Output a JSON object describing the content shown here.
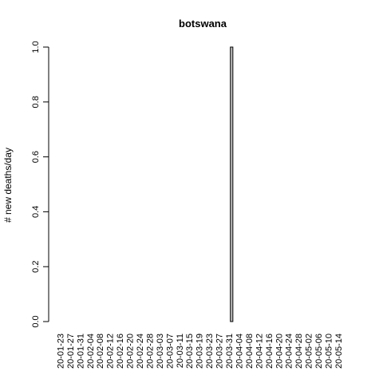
{
  "chart_data": {
    "type": "bar",
    "title": "botswana",
    "xlabel": "",
    "ylabel": "# new deaths/day",
    "ylim": [
      0,
      1
    ],
    "y_ticks": [
      "0.0",
      "0.2",
      "0.4",
      "0.6",
      "0.8",
      "1.0"
    ],
    "x_start": "2020-01-23",
    "x_end": "2020-05-17",
    "x_tick_labels": [
      "20-01-23",
      "20-01-27",
      "20-01-31",
      "20-02-04",
      "20-02-08",
      "20-02-12",
      "20-02-16",
      "20-02-20",
      "20-02-24",
      "20-02-28",
      "20-03-03",
      "20-03-07",
      "20-03-11",
      "20-03-15",
      "20-03-19",
      "20-03-23",
      "20-03-27",
      "20-03-31",
      "20-04-04",
      "20-04-08",
      "20-04-12",
      "20-04-16",
      "20-04-20",
      "20-04-24",
      "20-04-28",
      "20-05-02",
      "20-05-06",
      "20-05-10",
      "20-05-14"
    ],
    "points": [
      {
        "date": "2020-04-01",
        "value": 1
      }
    ],
    "default_value": 0,
    "grid": false,
    "legend": "none",
    "bar_fill": "#bebebe",
    "bar_stroke": "#000000"
  }
}
